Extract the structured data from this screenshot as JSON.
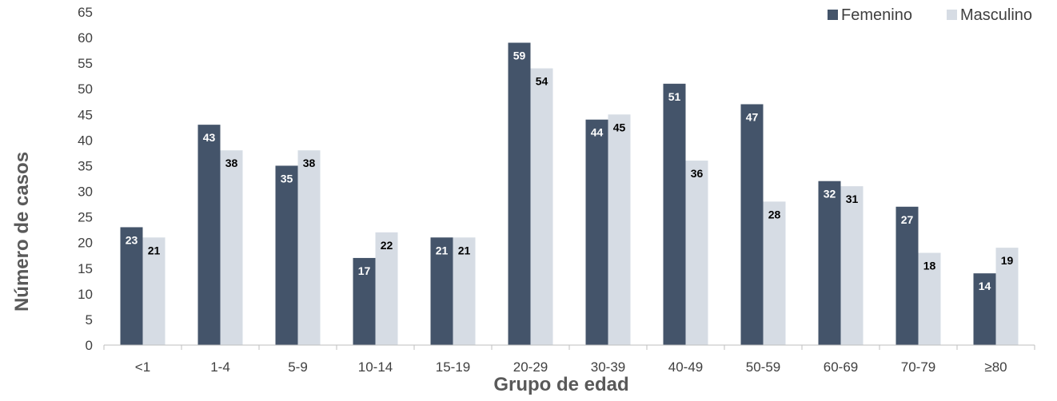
{
  "chart_data": {
    "type": "bar",
    "categories": [
      "<1",
      "1-4",
      "5-9",
      "10-14",
      "15-19",
      "20-29",
      "30-39",
      "40-49",
      "50-59",
      "60-69",
      "70-79",
      "≥80"
    ],
    "series": [
      {
        "name": "Femenino",
        "color": "#44546a",
        "label_color": "#ffffff",
        "values": [
          23,
          43,
          35,
          17,
          21,
          59,
          44,
          51,
          47,
          32,
          27,
          14
        ]
      },
      {
        "name": "Masculino",
        "color": "#d6dce4",
        "label_color": "#000000",
        "values": [
          21,
          38,
          38,
          22,
          21,
          54,
          45,
          36,
          28,
          31,
          18,
          19
        ]
      }
    ],
    "title": "",
    "xlabel": "Grupo de edad",
    "ylabel": "Número de casos",
    "ylim": [
      0,
      65
    ],
    "y_ticks": [
      0,
      5,
      10,
      15,
      20,
      25,
      30,
      35,
      40,
      45,
      50,
      55,
      60,
      65
    ],
    "grid": false,
    "legend_position": "top-right"
  }
}
